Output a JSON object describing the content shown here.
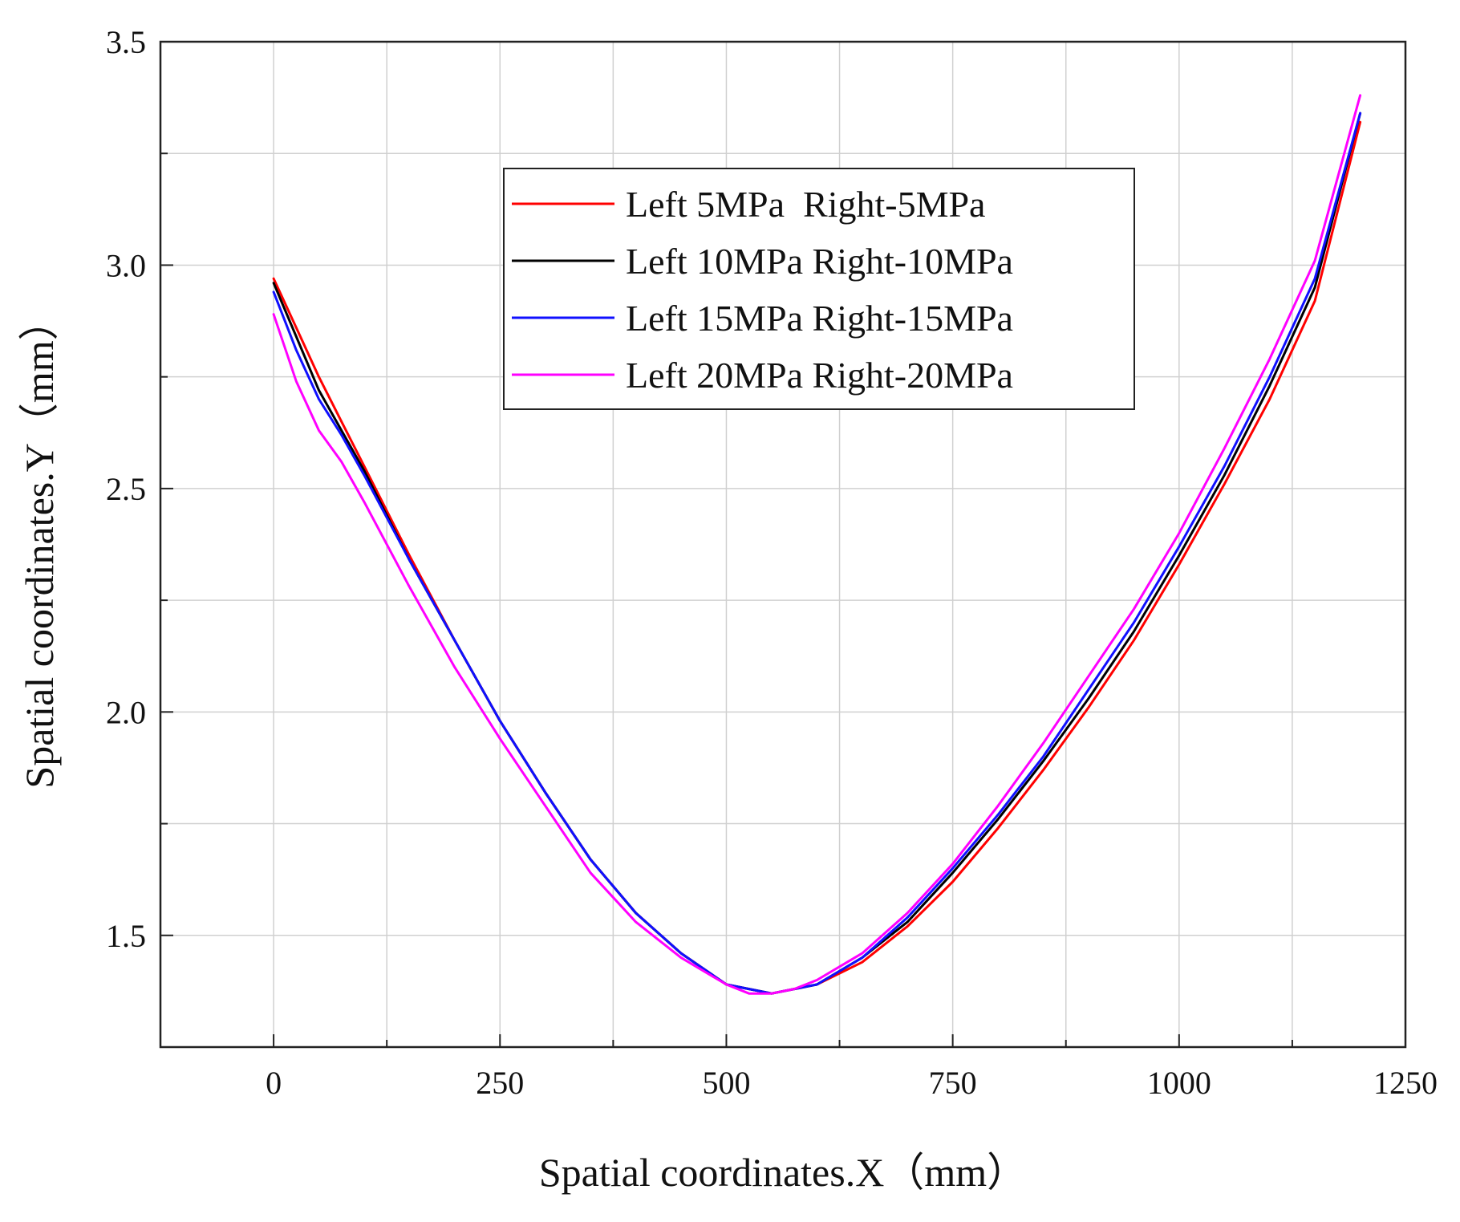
{
  "chart_data": {
    "type": "line",
    "xlabel": "Spatial coordinates.X（mm）",
    "ylabel": "Spatial coordinates.Y（mm）",
    "xlim": [
      -125,
      1250
    ],
    "ylim": [
      1.25,
      3.5
    ],
    "xticks": [
      0,
      250,
      500,
      750,
      1000,
      1250
    ],
    "yticks": [
      1.5,
      2.0,
      2.5,
      3.0,
      3.5
    ],
    "xtick_labels": [
      "0",
      "250",
      "500",
      "750",
      "1000",
      "1250"
    ],
    "ytick_labels": [
      "1.5",
      "2.0",
      "2.5",
      "3.0",
      "3.5"
    ],
    "grid": true,
    "legend_position": "top-center",
    "series": [
      {
        "name": "Left 5MPa  Right-5MPa",
        "color": "#ff0000",
        "x": [
          0,
          25,
          50,
          75,
          100,
          150,
          200,
          250,
          300,
          350,
          400,
          450,
          500,
          525,
          550,
          575,
          600,
          650,
          700,
          750,
          800,
          850,
          900,
          950,
          1000,
          1050,
          1100,
          1150,
          1200
        ],
        "y": [
          2.97,
          2.86,
          2.75,
          2.65,
          2.55,
          2.35,
          2.16,
          1.98,
          1.82,
          1.67,
          1.55,
          1.46,
          1.39,
          1.38,
          1.37,
          1.38,
          1.39,
          1.44,
          1.52,
          1.62,
          1.74,
          1.87,
          2.01,
          2.16,
          2.33,
          2.51,
          2.7,
          2.92,
          3.32
        ]
      },
      {
        "name": "Left 10MPa Right-10MPa",
        "color": "#000000",
        "x": [
          0,
          25,
          50,
          75,
          100,
          150,
          200,
          250,
          300,
          350,
          400,
          450,
          500,
          525,
          550,
          575,
          600,
          650,
          700,
          750,
          800,
          850,
          900,
          950,
          1000,
          1050,
          1100,
          1150,
          1200
        ],
        "y": [
          2.96,
          2.84,
          2.72,
          2.63,
          2.54,
          2.34,
          2.16,
          1.98,
          1.82,
          1.67,
          1.55,
          1.46,
          1.39,
          1.38,
          1.37,
          1.38,
          1.39,
          1.45,
          1.53,
          1.64,
          1.76,
          1.89,
          2.03,
          2.18,
          2.35,
          2.53,
          2.73,
          2.95,
          3.34
        ]
      },
      {
        "name": "Left 15MPa Right-15MPa",
        "color": "#1010ff",
        "x": [
          0,
          25,
          50,
          75,
          100,
          150,
          200,
          250,
          300,
          350,
          400,
          450,
          500,
          525,
          550,
          575,
          600,
          650,
          700,
          750,
          800,
          850,
          900,
          950,
          1000,
          1050,
          1100,
          1150,
          1200
        ],
        "y": [
          2.94,
          2.81,
          2.7,
          2.62,
          2.53,
          2.34,
          2.16,
          1.98,
          1.82,
          1.67,
          1.55,
          1.46,
          1.39,
          1.38,
          1.37,
          1.38,
          1.39,
          1.45,
          1.54,
          1.65,
          1.77,
          1.9,
          2.05,
          2.2,
          2.37,
          2.55,
          2.75,
          2.97,
          3.34
        ]
      },
      {
        "name": "Left 20MPa Right-20MPa",
        "color": "#ff00ff",
        "x": [
          0,
          25,
          50,
          75,
          100,
          150,
          200,
          250,
          300,
          350,
          400,
          450,
          500,
          525,
          550,
          575,
          600,
          650,
          700,
          750,
          800,
          850,
          900,
          950,
          1000,
          1050,
          1100,
          1150,
          1200
        ],
        "y": [
          2.89,
          2.74,
          2.63,
          2.56,
          2.47,
          2.28,
          2.1,
          1.94,
          1.79,
          1.64,
          1.53,
          1.45,
          1.39,
          1.37,
          1.37,
          1.38,
          1.4,
          1.46,
          1.55,
          1.66,
          1.79,
          1.93,
          2.08,
          2.23,
          2.4,
          2.59,
          2.79,
          3.01,
          3.38
        ]
      }
    ]
  }
}
